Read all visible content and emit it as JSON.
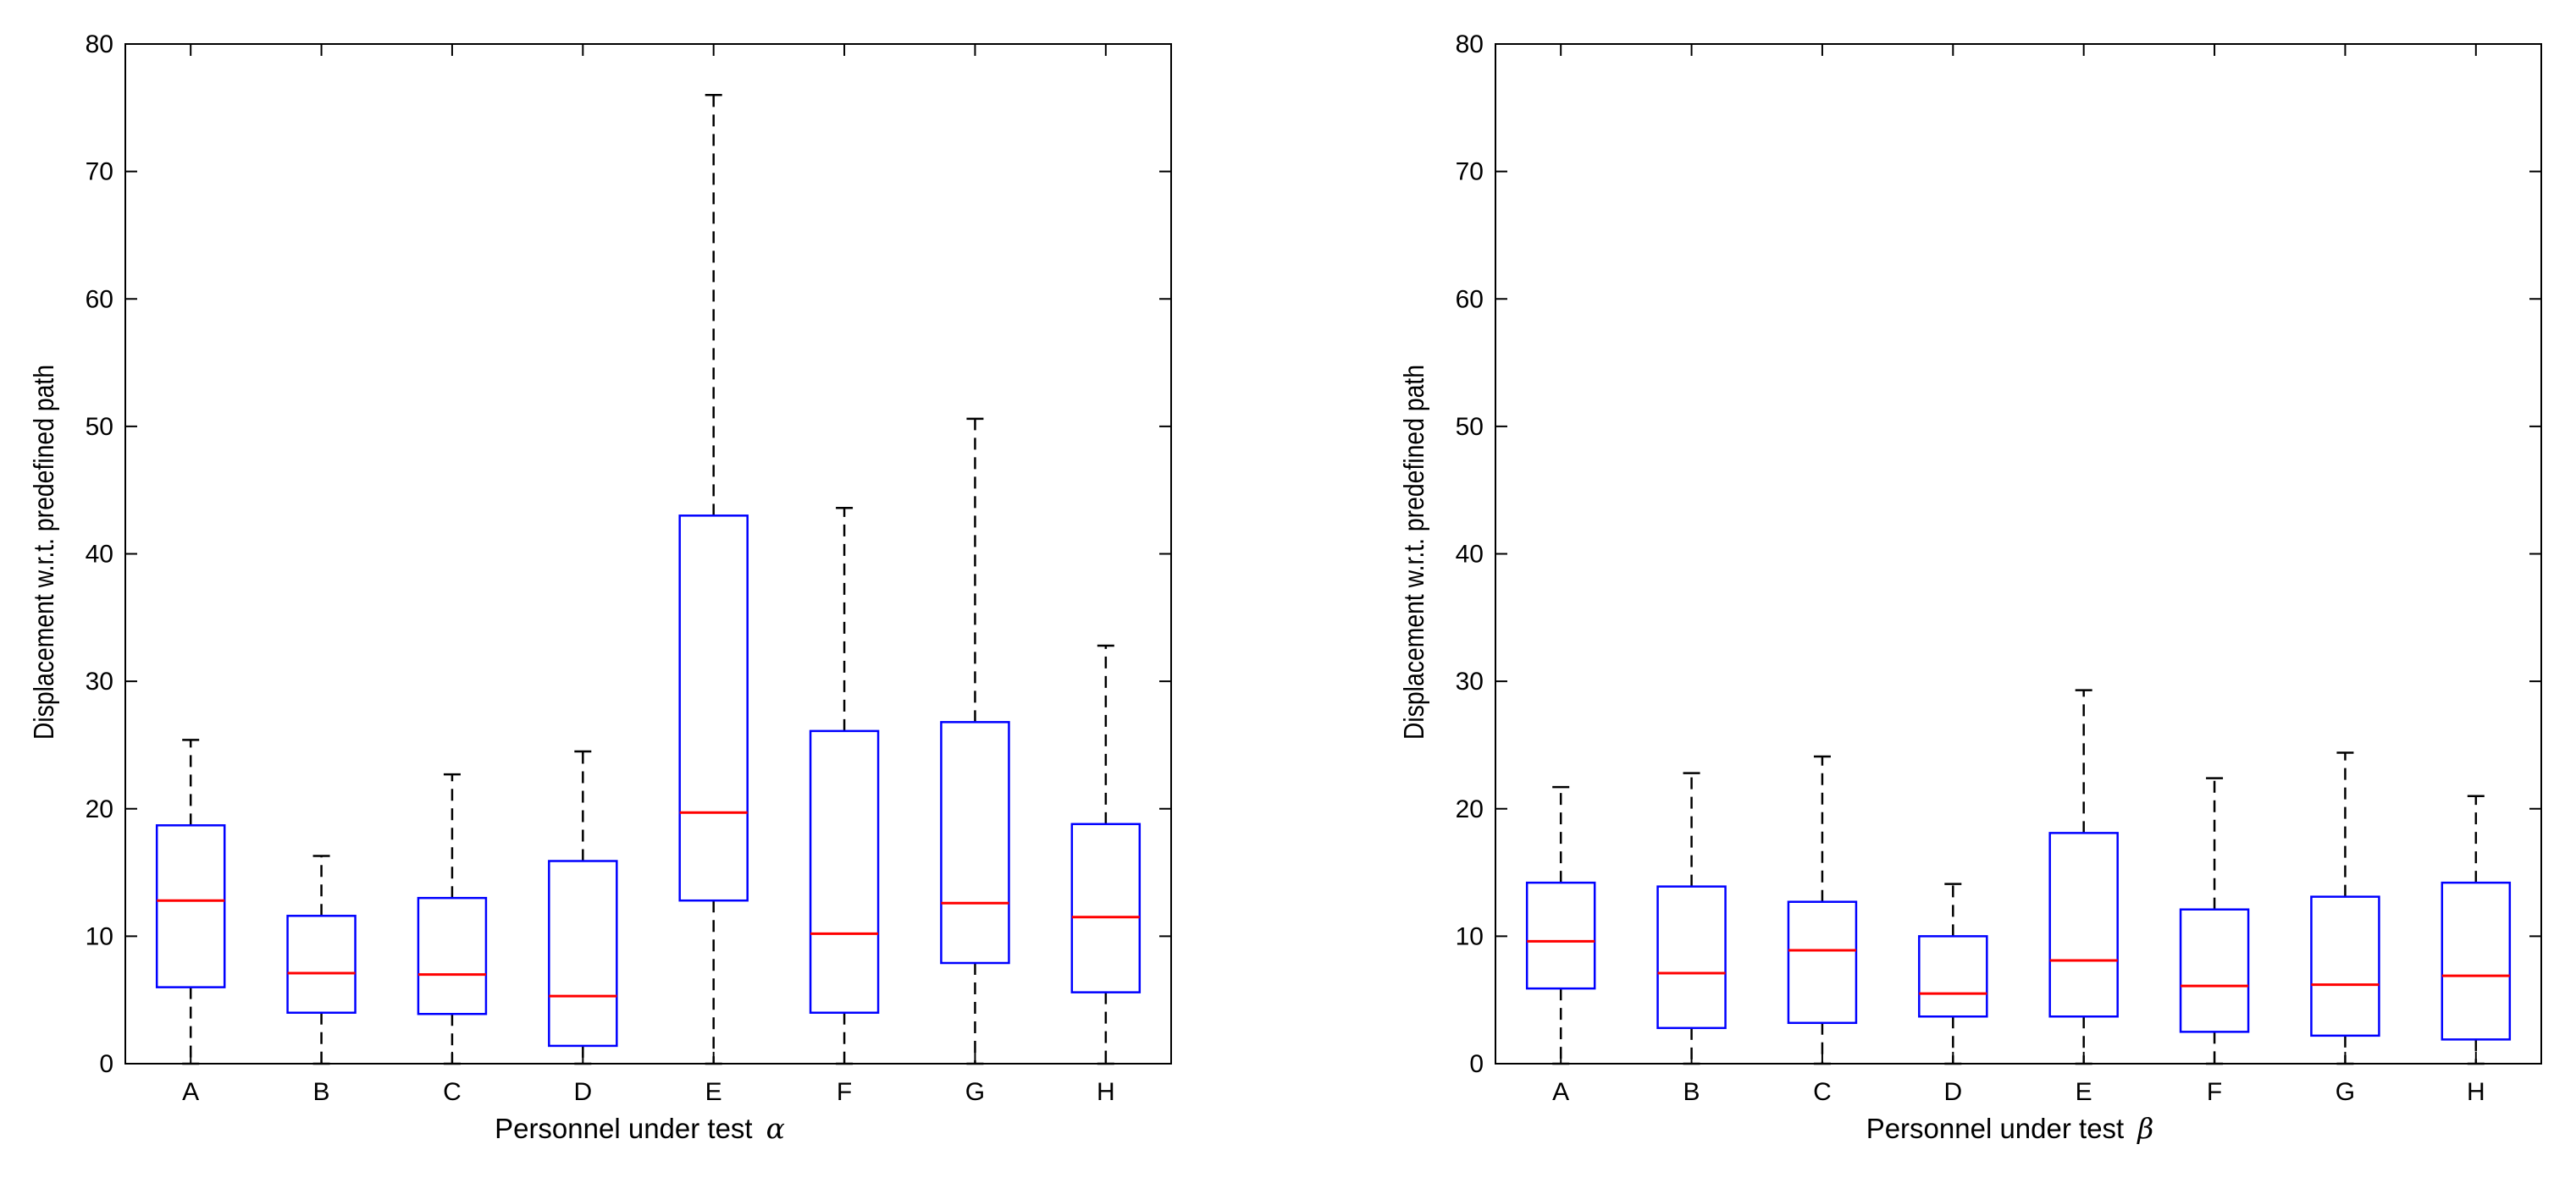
{
  "colors": {
    "box": "#0000ff",
    "median": "#ff0000",
    "whisker": "#000000",
    "axes": "#000000"
  },
  "chart_data": [
    {
      "type": "boxplot",
      "xlabel": "Personnel under test",
      "xlabel_symbol": "α",
      "ylabel": "Displacement w.r.t. predefined path",
      "ylim": [
        0,
        80
      ],
      "yticks": [
        0,
        10,
        20,
        30,
        40,
        50,
        60,
        70,
        80
      ],
      "categories": [
        "A",
        "B",
        "C",
        "D",
        "E",
        "F",
        "G",
        "H"
      ],
      "boxes": [
        {
          "name": "A",
          "min": 0,
          "q1": 6.0,
          "median": 12.8,
          "q3": 18.7,
          "max": 25.4
        },
        {
          "name": "B",
          "min": 0,
          "q1": 4.0,
          "median": 7.1,
          "q3": 11.6,
          "max": 16.3
        },
        {
          "name": "C",
          "min": 0,
          "q1": 3.9,
          "median": 7.0,
          "q3": 13.0,
          "max": 22.7
        },
        {
          "name": "D",
          "min": 0,
          "q1": 1.4,
          "median": 5.3,
          "q3": 15.9,
          "max": 24.5
        },
        {
          "name": "E",
          "min": 0,
          "q1": 12.8,
          "median": 19.7,
          "q3": 43.0,
          "max": 76.0
        },
        {
          "name": "F",
          "min": 0,
          "q1": 4.0,
          "median": 10.2,
          "q3": 26.1,
          "max": 43.6
        },
        {
          "name": "G",
          "min": 0,
          "q1": 7.9,
          "median": 12.6,
          "q3": 26.8,
          "max": 50.6
        },
        {
          "name": "H",
          "min": 0,
          "q1": 5.6,
          "median": 11.5,
          "q3": 18.8,
          "max": 32.8
        }
      ]
    },
    {
      "type": "boxplot",
      "xlabel": "Personnel under test",
      "xlabel_symbol": "β",
      "ylabel": "Displacement w.r.t. predefined path",
      "ylim": [
        0,
        80
      ],
      "yticks": [
        0,
        10,
        20,
        30,
        40,
        50,
        60,
        70,
        80
      ],
      "categories": [
        "A",
        "B",
        "C",
        "D",
        "E",
        "F",
        "G",
        "H"
      ],
      "boxes": [
        {
          "name": "A",
          "min": 0,
          "q1": 5.9,
          "median": 9.6,
          "q3": 14.2,
          "max": 21.7
        },
        {
          "name": "B",
          "min": 0,
          "q1": 2.8,
          "median": 7.1,
          "q3": 13.9,
          "max": 22.8
        },
        {
          "name": "C",
          "min": 0,
          "q1": 3.2,
          "median": 8.9,
          "q3": 12.7,
          "max": 24.1
        },
        {
          "name": "D",
          "min": 0,
          "q1": 3.7,
          "median": 5.5,
          "q3": 10.0,
          "max": 14.1
        },
        {
          "name": "E",
          "min": 0,
          "q1": 3.7,
          "median": 8.1,
          "q3": 18.1,
          "max": 29.3
        },
        {
          "name": "F",
          "min": 0,
          "q1": 2.5,
          "median": 6.1,
          "q3": 12.1,
          "max": 22.4
        },
        {
          "name": "G",
          "min": 0,
          "q1": 2.2,
          "median": 6.2,
          "q3": 13.1,
          "max": 24.4
        },
        {
          "name": "H",
          "min": 0,
          "q1": 1.9,
          "median": 6.9,
          "q3": 14.2,
          "max": 21.0
        }
      ]
    }
  ]
}
